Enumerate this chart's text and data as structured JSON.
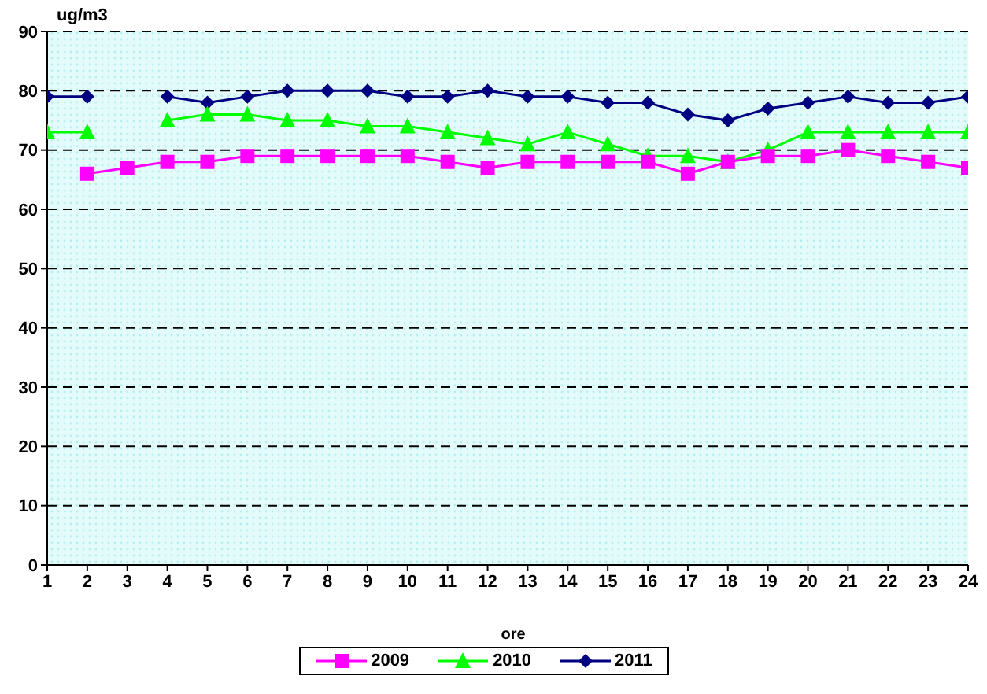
{
  "chart_data": {
    "type": "line",
    "ylabel": "ug/m3",
    "xlabel": "ore",
    "x": [
      1,
      2,
      3,
      4,
      5,
      6,
      7,
      8,
      9,
      10,
      11,
      12,
      13,
      14,
      15,
      16,
      17,
      18,
      19,
      20,
      21,
      22,
      23,
      24
    ],
    "xlim": [
      1,
      24
    ],
    "xticks": [
      1,
      2,
      3,
      4,
      5,
      6,
      7,
      8,
      9,
      10,
      11,
      12,
      13,
      14,
      15,
      16,
      17,
      18,
      19,
      20,
      21,
      22,
      23,
      24
    ],
    "ylim": [
      0,
      90
    ],
    "yticks": [
      0,
      10,
      20,
      30,
      40,
      50,
      60,
      70,
      80,
      90
    ],
    "grid": "y",
    "legend": "bottom",
    "line_style": "solid",
    "series": [
      {
        "name": "2009",
        "color": "#ff00ff",
        "marker": "square",
        "values": [
          null,
          66,
          67,
          68,
          68,
          69,
          69,
          69,
          69,
          69,
          68,
          67,
          68,
          68,
          68,
          68,
          66,
          68,
          69,
          69,
          70,
          69,
          68,
          67
        ]
      },
      {
        "name": "2010",
        "color": "#00ff00",
        "marker": "triangle",
        "values": [
          73,
          73,
          null,
          75,
          76,
          76,
          75,
          75,
          74,
          74,
          73,
          72,
          71,
          73,
          71,
          69,
          69,
          68,
          70,
          73,
          73,
          73,
          73,
          73
        ]
      },
      {
        "name": "2011",
        "color": "#000080",
        "marker": "diamond",
        "values": [
          79,
          79,
          null,
          79,
          78,
          79,
          80,
          80,
          80,
          79,
          79,
          80,
          79,
          79,
          78,
          78,
          76,
          75,
          77,
          78,
          79,
          78,
          78,
          79
        ]
      }
    ]
  }
}
